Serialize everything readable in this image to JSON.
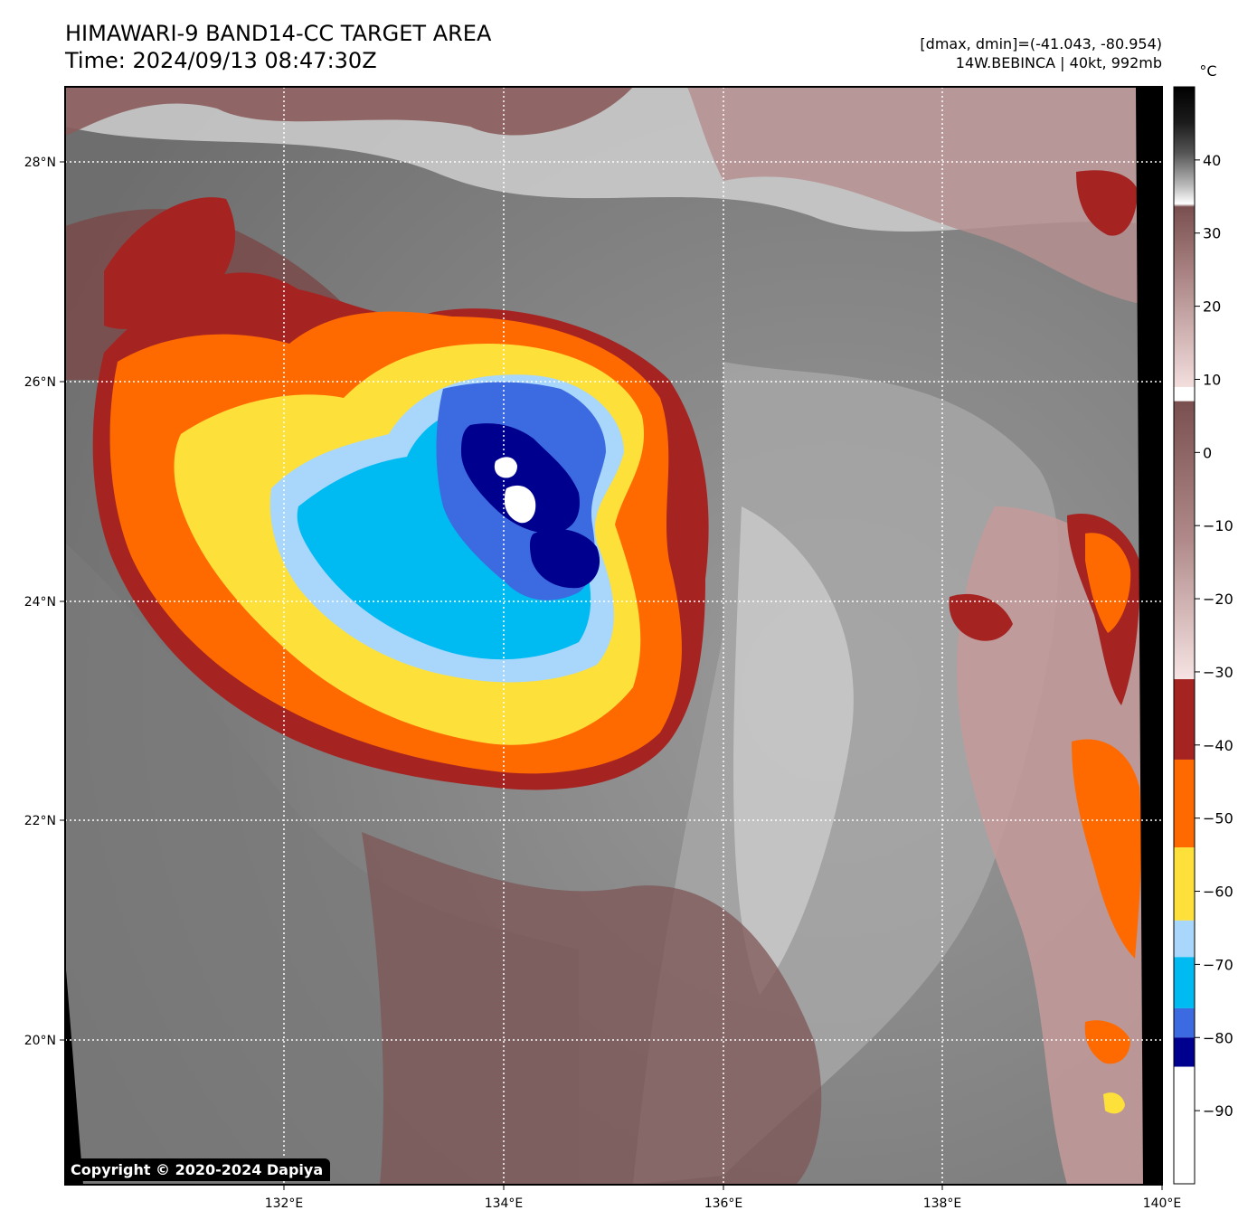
{
  "header": {
    "title_line1": "HIMAWARI-9 BAND14-CC TARGET AREA",
    "title_line2": "Time: 2024/09/13 08:47:30Z",
    "range_text": "[dmax, dmin]=(-41.043, -80.954)",
    "storm_text": "14W.BEBINCA | 40kt, 992mb"
  },
  "map": {
    "lat_labels": [
      "28°N",
      "26°N",
      "24°N",
      "22°N",
      "20°N"
    ],
    "lon_labels": [
      "132°E",
      "134°E",
      "136°E",
      "138°E",
      "140°E"
    ]
  },
  "colorbar": {
    "unit": "°C",
    "ticks": [
      "40",
      "30",
      "20",
      "10",
      "0",
      "−10",
      "−20",
      "−30",
      "−40",
      "−50",
      "−60",
      "−70",
      "−80",
      "−90"
    ],
    "color_bands": [
      {
        "from": 7,
        "to": -31,
        "color": "#8a5b5b"
      },
      {
        "from": -31,
        "to": -42,
        "color": "#a52422"
      },
      {
        "from": -42,
        "to": -54,
        "color": "#ff6a00"
      },
      {
        "from": -54,
        "to": -64,
        "color": "#fde03a"
      },
      {
        "from": -64,
        "to": -69,
        "color": "#a9d6fb"
      },
      {
        "from": -69,
        "to": -76,
        "color": "#00baf2"
      },
      {
        "from": -76,
        "to": -80,
        "color": "#3c6ae0"
      },
      {
        "from": -80,
        "to": -84,
        "color": "#00008f"
      },
      {
        "from": -84,
        "to": -100,
        "color": "#ffffff"
      }
    ]
  },
  "copyright": "Copyright © 2020-2024 Dapiya"
}
